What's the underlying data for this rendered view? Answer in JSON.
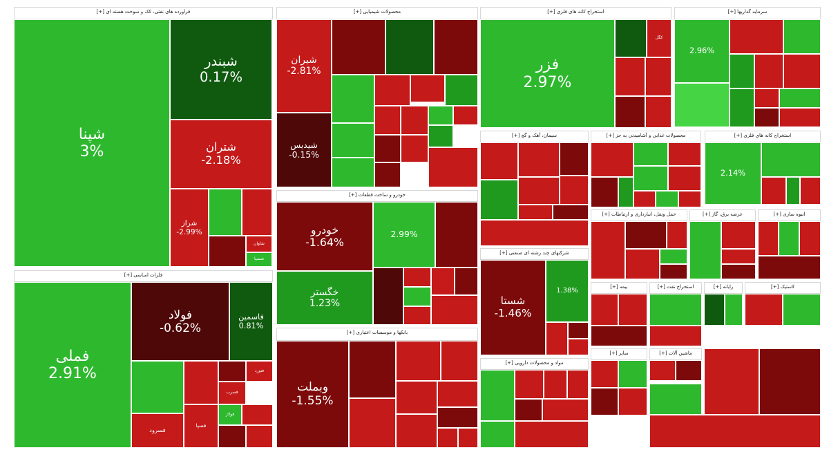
{
  "colors": {
    "strong_green": "#2eb82e",
    "green": "#1f9a1f",
    "dark_green": "#0f5a0f",
    "red": "#c41a1a",
    "dark_red": "#7d0a0a",
    "deep_red": "#4e0808",
    "light_green": "#44d444"
  },
  "chart_data": {
    "type": "treemap",
    "sectors": [
      {
        "id": "s1",
        "title": "فراورده های نفتی، کک و سوخت هسته ای [+]",
        "tiles": [
          {
            "symbol": "شپنا",
            "change": "3%",
            "color": "#2eb82e"
          },
          {
            "symbol": "شبندر",
            "change": "0.17%",
            "color": "#0f5a0f"
          },
          {
            "symbol": "شتران",
            "change": "-2.18%",
            "color": "#c41a1a"
          },
          {
            "symbol": "شراز",
            "change": "-2.99%",
            "color": "#c41a1a"
          },
          {
            "symbol": "",
            "change": "",
            "color": "#2eb82e"
          },
          {
            "symbol": "",
            "change": "",
            "color": "#c41a1a"
          },
          {
            "symbol": "",
            "change": "",
            "color": "#7d0a0a"
          },
          {
            "symbol": "شاوان",
            "change": "",
            "color": "#c41a1a"
          },
          {
            "symbol": "شسپا",
            "change": "",
            "color": "#2eb82e"
          }
        ]
      },
      {
        "id": "s2",
        "title": "فلزات اساسی [+]",
        "tiles": [
          {
            "symbol": "فملی",
            "change": "2.91%",
            "color": "#2eb82e"
          },
          {
            "symbol": "فولاد",
            "change": "-0.62%",
            "color": "#4e0808"
          },
          {
            "symbol": "فاسمین",
            "change": "0.81%",
            "color": "#0f5a0f"
          },
          {
            "symbol": "",
            "change": "",
            "color": "#2eb82e"
          },
          {
            "symbol": "",
            "change": "",
            "color": "#c41a1a"
          },
          {
            "symbol": "",
            "change": "",
            "color": "#7d0a0a"
          },
          {
            "symbol": "فنورد",
            "change": "",
            "color": "#c41a1a"
          },
          {
            "symbol": "فسرب",
            "change": "",
            "color": "#c41a1a"
          },
          {
            "symbol": "فولاژ",
            "change": "",
            "color": "#2eb82e"
          },
          {
            "symbol": "",
            "change": "",
            "color": "#c41a1a"
          },
          {
            "symbol": "فسپا",
            "change": "",
            "color": "#c41a1a"
          },
          {
            "symbol": "فسرود",
            "change": "",
            "color": "#c41a1a"
          },
          {
            "symbol": "",
            "change": "",
            "color": "#7d0a0a"
          },
          {
            "symbol": "",
            "change": "",
            "color": "#c41a1a"
          }
        ]
      },
      {
        "id": "s3",
        "title": "محصولات شیمیایی [+]",
        "tiles": [
          {
            "symbol": "شیران",
            "change": "-2.81%",
            "color": "#c41a1a"
          },
          {
            "symbol": "شیدیس",
            "change": "-0.15%",
            "color": "#4e0808"
          },
          {
            "symbol": "",
            "change": "",
            "color": "#7d0a0a"
          },
          {
            "symbol": "",
            "change": "",
            "color": "#0f5a0f"
          },
          {
            "symbol": "",
            "change": "",
            "color": "#7d0a0a"
          },
          {
            "symbol": "",
            "change": "",
            "color": "#2eb82e"
          },
          {
            "symbol": "",
            "change": "",
            "color": "#c41a1a"
          },
          {
            "symbol": "",
            "change": "",
            "color": "#c41a1a"
          },
          {
            "symbol": "",
            "change": "",
            "color": "#1f9a1f"
          },
          {
            "symbol": "",
            "change": "",
            "color": "#2eb82e"
          },
          {
            "symbol": "",
            "change": "",
            "color": "#c41a1a"
          },
          {
            "symbol": "",
            "change": "",
            "color": "#c41a1a"
          },
          {
            "symbol": "",
            "change": "",
            "color": "#2eb82e"
          },
          {
            "symbol": "",
            "change": "",
            "color": "#c41a1a"
          },
          {
            "symbol": "",
            "change": "",
            "color": "#2eb82e"
          },
          {
            "symbol": "",
            "change": "",
            "color": "#7d0a0a"
          },
          {
            "symbol": "",
            "change": "",
            "color": "#c41a1a"
          },
          {
            "symbol": "",
            "change": "",
            "color": "#1f9a1f"
          },
          {
            "symbol": "",
            "change": "",
            "color": "#7d0a0a"
          },
          {
            "symbol": "",
            "change": "",
            "color": "#c41a1a"
          }
        ]
      },
      {
        "id": "s4",
        "title": "خودرو و ساخت قطعات [+]",
        "tiles": [
          {
            "symbol": "خودرو",
            "change": "-1.64%",
            "color": "#7d0a0a"
          },
          {
            "symbol": "خگستر",
            "change": "1.23%",
            "color": "#1f9a1f"
          },
          {
            "symbol": "",
            "change": "2.99%",
            "color": "#2eb82e"
          },
          {
            "symbol": "",
            "change": "",
            "color": "#7d0a0a"
          },
          {
            "symbol": "",
            "change": "",
            "color": "#4e0808"
          },
          {
            "symbol": "",
            "change": "",
            "color": "#c41a1a"
          },
          {
            "symbol": "",
            "change": "",
            "color": "#2eb82e"
          },
          {
            "symbol": "",
            "change": "",
            "color": "#c41a1a"
          },
          {
            "symbol": "",
            "change": "",
            "color": "#c41a1a"
          },
          {
            "symbol": "",
            "change": "",
            "color": "#7d0a0a"
          },
          {
            "symbol": "",
            "change": "",
            "color": "#c41a1a"
          }
        ]
      },
      {
        "id": "s5",
        "title": "بانکها و موسسات اعتباری [+]",
        "tiles": [
          {
            "symbol": "وبملت",
            "change": "-1.55%",
            "color": "#7d0a0a"
          },
          {
            "symbol": "",
            "change": "",
            "color": "#7d0a0a"
          },
          {
            "symbol": "",
            "change": "",
            "color": "#c41a1a"
          },
          {
            "symbol": "",
            "change": "",
            "color": "#c41a1a"
          },
          {
            "symbol": "",
            "change": "",
            "color": "#c41a1a"
          },
          {
            "symbol": "",
            "change": "",
            "color": "#c41a1a"
          },
          {
            "symbol": "",
            "change": "",
            "color": "#c41a1a"
          },
          {
            "symbol": "",
            "change": "",
            "color": "#7d0a0a"
          },
          {
            "symbol": "",
            "change": "",
            "color": "#c41a1a"
          },
          {
            "symbol": "",
            "change": "",
            "color": "#c41a1a"
          },
          {
            "symbol": "",
            "change": "",
            "color": "#c41a1a"
          },
          {
            "symbol": "",
            "change": "",
            "color": "#7d0a0a"
          }
        ]
      },
      {
        "id": "s6",
        "title": "استخراج کانه های فلزی [+]",
        "tiles": [
          {
            "symbol": "فزر",
            "change": "2.97%",
            "color": "#2eb82e"
          },
          {
            "symbol": "",
            "change": "",
            "color": "#0f5a0f"
          },
          {
            "symbol": "کگل",
            "change": "",
            "color": "#c41a1a"
          },
          {
            "symbol": "",
            "change": "",
            "color": "#c41a1a"
          },
          {
            "symbol": "",
            "change": "",
            "color": "#c41a1a"
          },
          {
            "symbol": "",
            "change": "",
            "color": "#7d0a0a"
          },
          {
            "symbol": "",
            "change": "",
            "color": "#c41a1a"
          }
        ]
      },
      {
        "id": "s7",
        "title": "سیمان، آهک و گچ [+]",
        "tiles": [
          {
            "symbol": "",
            "change": "",
            "color": "#c41a1a"
          },
          {
            "symbol": "",
            "change": "",
            "color": "#c41a1a"
          },
          {
            "symbol": "",
            "change": "",
            "color": "#1f9a1f"
          },
          {
            "symbol": "",
            "change": "",
            "color": "#c41a1a"
          },
          {
            "symbol": "",
            "change": "",
            "color": "#7d0a0a"
          },
          {
            "symbol": "",
            "change": "",
            "color": "#c41a1a"
          },
          {
            "symbol": "",
            "change": "",
            "color": "#c41a1a"
          },
          {
            "symbol": "",
            "change": "",
            "color": "#7d0a0a"
          },
          {
            "symbol": "",
            "change": "",
            "color": "#c41a1a"
          }
        ]
      },
      {
        "id": "s8",
        "title": "شرکتهای چند رشته ای صنعتی [+]",
        "tiles": [
          {
            "symbol": "شستا",
            "change": "-1.46%",
            "color": "#7d0a0a"
          },
          {
            "symbol": "",
            "change": "1.38%",
            "color": "#1f9a1f"
          },
          {
            "symbol": "",
            "change": "",
            "color": "#c41a1a"
          },
          {
            "symbol": "",
            "change": "",
            "color": "#7d0a0a"
          },
          {
            "symbol": "",
            "change": "",
            "color": "#c41a1a"
          }
        ]
      },
      {
        "id": "s9",
        "title": "مواد و محصولات دارویی [+]",
        "tiles": [
          {
            "symbol": "",
            "change": "",
            "color": "#2eb82e"
          },
          {
            "symbol": "",
            "change": "",
            "color": "#c41a1a"
          },
          {
            "symbol": "",
            "change": "",
            "color": "#c41a1a"
          },
          {
            "symbol": "",
            "change": "",
            "color": "#c41a1a"
          },
          {
            "symbol": "",
            "change": "",
            "color": "#7d0a0a"
          },
          {
            "symbol": "",
            "change": "",
            "color": "#c41a1a"
          },
          {
            "symbol": "",
            "change": "",
            "color": "#2eb82e"
          },
          {
            "symbol": "",
            "change": "",
            "color": "#c41a1a"
          }
        ]
      },
      {
        "id": "s10",
        "title": "سرمایه گذاریها [+]",
        "tiles": [
          {
            "symbol": "",
            "change": "2.96%",
            "color": "#2eb82e"
          },
          {
            "symbol": "",
            "change": "",
            "color": "#c41a1a"
          },
          {
            "symbol": "",
            "change": "",
            "color": "#2eb82e"
          },
          {
            "symbol": "",
            "change": "",
            "color": "#44d444"
          },
          {
            "symbol": "",
            "change": "",
            "color": "#1f9a1f"
          },
          {
            "symbol": "",
            "change": "",
            "color": "#c41a1a"
          },
          {
            "symbol": "",
            "change": "",
            "color": "#c41a1a"
          },
          {
            "symbol": "",
            "change": "",
            "color": "#1f9a1f"
          },
          {
            "symbol": "",
            "change": "",
            "color": "#c41a1a"
          },
          {
            "symbol": "",
            "change": "",
            "color": "#2eb82e"
          },
          {
            "symbol": "",
            "change": "",
            "color": "#7d0a0a"
          },
          {
            "symbol": "",
            "change": "",
            "color": "#c41a1a"
          }
        ]
      },
      {
        "id": "s11",
        "title": "محصولات غذایی و آشامیدنی به جز [+]",
        "tiles": [
          {
            "symbol": "",
            "change": "",
            "color": "#c41a1a"
          },
          {
            "symbol": "",
            "change": "",
            "color": "#2eb82e"
          },
          {
            "symbol": "",
            "change": "",
            "color": "#c41a1a"
          },
          {
            "symbol": "",
            "change": "",
            "color": "#2eb82e"
          },
          {
            "symbol": "",
            "change": "",
            "color": "#c41a1a"
          },
          {
            "symbol": "",
            "change": "",
            "color": "#7d0a0a"
          },
          {
            "symbol": "",
            "change": "",
            "color": "#1f9a1f"
          },
          {
            "symbol": "",
            "change": "",
            "color": "#c41a1a"
          },
          {
            "symbol": "",
            "change": "",
            "color": "#2eb82e"
          },
          {
            "symbol": "",
            "change": "",
            "color": "#c41a1a"
          },
          {
            "symbol": "",
            "change": "",
            "color": "#7d0a0a"
          },
          {
            "symbol": "",
            "change": "",
            "color": "#c41a1a"
          }
        ]
      },
      {
        "id": "s12",
        "title": "استخراج کانه های فلزی [+]",
        "tiles": [
          {
            "symbol": "",
            "change": "2.14%",
            "color": "#2eb82e"
          },
          {
            "symbol": "",
            "change": "",
            "color": "#2eb82e"
          },
          {
            "symbol": "",
            "change": "",
            "color": "#c41a1a"
          },
          {
            "symbol": "",
            "change": "",
            "color": "#1f9a1f"
          },
          {
            "symbol": "",
            "change": "",
            "color": "#c41a1a"
          }
        ]
      },
      {
        "id": "s13",
        "title": "حمل ونقل، انبارداری و ارتباطات [+]",
        "tiles": [
          {
            "symbol": "",
            "change": "",
            "color": "#c41a1a"
          },
          {
            "symbol": "",
            "change": "",
            "color": "#7d0a0a"
          },
          {
            "symbol": "",
            "change": "",
            "color": "#c41a1a"
          },
          {
            "symbol": "",
            "change": "",
            "color": "#c41a1a"
          },
          {
            "symbol": "",
            "change": "",
            "color": "#2eb82e"
          },
          {
            "symbol": "",
            "change": "",
            "color": "#7d0a0a"
          }
        ]
      },
      {
        "id": "s14",
        "title": "عرضه برق، گاز [+]",
        "tiles": [
          {
            "symbol": "",
            "change": "",
            "color": "#2eb82e"
          },
          {
            "symbol": "",
            "change": "",
            "color": "#c41a1a"
          },
          {
            "symbol": "",
            "change": "",
            "color": "#c41a1a"
          },
          {
            "symbol": "",
            "change": "",
            "color": "#7d0a0a"
          }
        ]
      },
      {
        "id": "s15",
        "title": "انبوه سازی [+]",
        "tiles": [
          {
            "symbol": "",
            "change": "",
            "color": "#c41a1a"
          },
          {
            "symbol": "",
            "change": "",
            "color": "#2eb82e"
          },
          {
            "symbol": "",
            "change": "",
            "color": "#c41a1a"
          },
          {
            "symbol": "",
            "change": "",
            "color": "#7d0a0a"
          }
        ]
      },
      {
        "id": "s16",
        "title": "بیمه [+]",
        "tiles": [
          {
            "symbol": "",
            "change": "",
            "color": "#c41a1a"
          },
          {
            "symbol": "",
            "change": "",
            "color": "#c41a1a"
          },
          {
            "symbol": "",
            "change": "",
            "color": "#7d0a0a"
          }
        ]
      },
      {
        "id": "s17",
        "title": "استخراج نفت [+]",
        "tiles": [
          {
            "symbol": "",
            "change": "",
            "color": "#2eb82e"
          },
          {
            "symbol": "",
            "change": "",
            "color": "#c41a1a"
          }
        ]
      },
      {
        "id": "s18",
        "title": "رایانه [+]",
        "tiles": [
          {
            "symbol": "",
            "change": "",
            "color": "#0f5a0f"
          },
          {
            "symbol": "",
            "change": "",
            "color": "#2eb82e"
          }
        ]
      },
      {
        "id": "s19",
        "title": "ماشین آلات [+]",
        "tiles": [
          {
            "symbol": "",
            "change": "",
            "color": "#c41a1a"
          },
          {
            "symbol": "",
            "change": "",
            "color": "#7d0a0a"
          }
        ]
      },
      {
        "id": "s20",
        "title": "لاستیک [+]",
        "tiles": [
          {
            "symbol": "",
            "change": "",
            "color": "#c41a1a"
          },
          {
            "symbol": "",
            "change": "",
            "color": "#2eb82e"
          }
        ]
      },
      {
        "id": "s21",
        "title": "سایر [+]",
        "tiles": [
          {
            "symbol": "",
            "change": "",
            "color": "#c41a1a"
          },
          {
            "symbol": "",
            "change": "",
            "color": "#2eb82e"
          },
          {
            "symbol": "",
            "change": "",
            "color": "#7d0a0a"
          },
          {
            "symbol": "",
            "change": "",
            "color": "#c41a1a"
          },
          {
            "symbol": "",
            "change": "",
            "color": "#2eb82e"
          },
          {
            "symbol": "",
            "change": "",
            "color": "#c41a1a"
          },
          {
            "symbol": "",
            "change": "",
            "color": "#7d0a0a"
          },
          {
            "symbol": "",
            "change": "",
            "color": "#c41a1a"
          }
        ]
      }
    ]
  }
}
